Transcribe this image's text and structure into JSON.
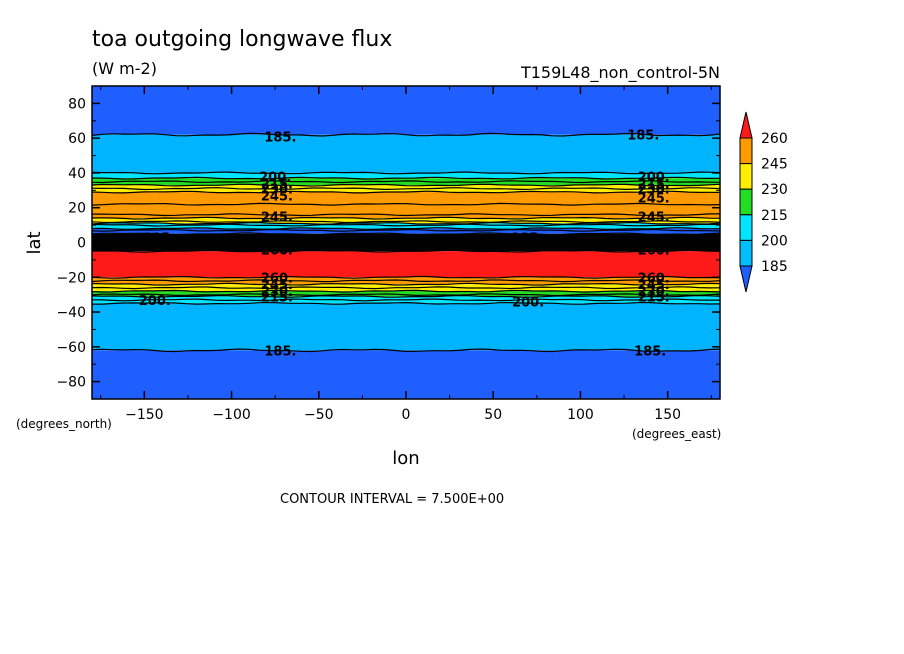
{
  "chart_data": {
    "type": "heatmap",
    "title": "toa outgoing longwave flux",
    "units": "(W m-2)",
    "run_label": "T159L48_non_control-5N",
    "xlabel": "lon",
    "ylabel": "lat",
    "x_unit_label": "(degrees_east)",
    "y_unit_label": "(degrees_north)",
    "xlim": [
      -180,
      180
    ],
    "ylim": [
      -90,
      90
    ],
    "x_ticks": [
      -150,
      -100,
      -50,
      0,
      50,
      100,
      150
    ],
    "y_ticks": [
      80,
      60,
      40,
      20,
      0,
      -20,
      -40,
      -60,
      -80
    ],
    "contour_interval_text": "CONTOUR INTERVAL = 7.500E+00",
    "colorbar": {
      "levels": [
        185,
        200,
        215,
        230,
        245,
        260
      ],
      "colors": [
        "#1f5fff",
        "#00bfff",
        "#00e5ff",
        "#22dd22",
        "#ffee00",
        "#ff9a00",
        "#ff1a1a"
      ],
      "extend": "both"
    },
    "bands": [
      {
        "lat_top": 90,
        "lat_bottom": 62,
        "color": "#1f5fff"
      },
      {
        "lat_top": 62,
        "lat_bottom": 40,
        "color": "#00b4ff"
      },
      {
        "lat_top": 40,
        "lat_bottom": 37,
        "color": "#00e5ff"
      },
      {
        "lat_top": 37,
        "lat_bottom": 33,
        "color": "#22dd22"
      },
      {
        "lat_top": 33,
        "lat_bottom": 29,
        "color": "#ffee00"
      },
      {
        "lat_top": 29,
        "lat_bottom": 14,
        "color": "#ff9a00"
      },
      {
        "lat_top": 14,
        "lat_bottom": 11,
        "color": "#ffee00"
      },
      {
        "lat_top": 11,
        "lat_bottom": 8,
        "color": "#00e5ff"
      },
      {
        "lat_top": 8,
        "lat_bottom": 5,
        "color": "#1f5fff"
      },
      {
        "lat_top": 5,
        "lat_bottom": -5,
        "color": "#000000"
      },
      {
        "lat_top": -5,
        "lat_bottom": -20,
        "color": "#ff1a1a"
      },
      {
        "lat_top": -20,
        "lat_bottom": -24,
        "color": "#ff9a00"
      },
      {
        "lat_top": -24,
        "lat_bottom": -28,
        "color": "#ffee00"
      },
      {
        "lat_top": -28,
        "lat_bottom": -31,
        "color": "#22dd22"
      },
      {
        "lat_top": -31,
        "lat_bottom": -35,
        "color": "#00e5ff"
      },
      {
        "lat_top": -35,
        "lat_bottom": -62,
        "color": "#00b4ff"
      },
      {
        "lat_top": -62,
        "lat_bottom": -90,
        "color": "#1f5fff"
      }
    ],
    "contour_lines_lat": [
      62,
      40,
      37,
      35,
      33,
      31,
      29,
      22,
      16,
      14,
      12,
      11,
      10,
      8,
      7,
      5,
      3,
      1,
      -1,
      -3,
      -5,
      -20,
      -22,
      -24,
      -26,
      -28,
      -30,
      -31,
      -33,
      -35,
      -62
    ],
    "contour_labels": [
      {
        "text": "185.",
        "lon": -72,
        "lat": 61
      },
      {
        "text": "185.",
        "lon": 136,
        "lat": 62
      },
      {
        "text": "200.",
        "lon": -75,
        "lat": 38
      },
      {
        "text": "200.",
        "lon": 142,
        "lat": 38
      },
      {
        "text": "215.",
        "lon": -74,
        "lat": 34
      },
      {
        "text": "215.",
        "lon": 142,
        "lat": 34
      },
      {
        "text": "230.",
        "lon": -74,
        "lat": 31
      },
      {
        "text": "230.",
        "lon": 142,
        "lat": 31
      },
      {
        "text": "245.",
        "lon": -74,
        "lat": 27
      },
      {
        "text": "245.",
        "lon": 142,
        "lat": 26
      },
      {
        "text": "245.",
        "lon": -74,
        "lat": 15
      },
      {
        "text": "245.",
        "lon": 142,
        "lat": 15
      },
      {
        "text": "185",
        "lon": -143,
        "lat": 3
      },
      {
        "text": "185",
        "lon": 68,
        "lat": 3
      },
      {
        "text": "260.",
        "lon": -74,
        "lat": -4
      },
      {
        "text": "260.",
        "lon": 142,
        "lat": -4
      },
      {
        "text": "260.",
        "lon": -74,
        "lat": -20
      },
      {
        "text": "260.",
        "lon": 142,
        "lat": -20
      },
      {
        "text": "245.",
        "lon": -74,
        "lat": -24
      },
      {
        "text": "245.",
        "lon": 142,
        "lat": -24
      },
      {
        "text": "230.",
        "lon": -74,
        "lat": -28
      },
      {
        "text": "230.",
        "lon": 142,
        "lat": -28
      },
      {
        "text": "215.",
        "lon": -74,
        "lat": -31
      },
      {
        "text": "215.",
        "lon": 142,
        "lat": -31
      },
      {
        "text": "200.",
        "lon": -144,
        "lat": -33
      },
      {
        "text": "200.",
        "lon": 70,
        "lat": -34
      },
      {
        "text": "185.",
        "lon": -72,
        "lat": -62
      },
      {
        "text": "185.",
        "lon": 140,
        "lat": -62
      }
    ]
  }
}
